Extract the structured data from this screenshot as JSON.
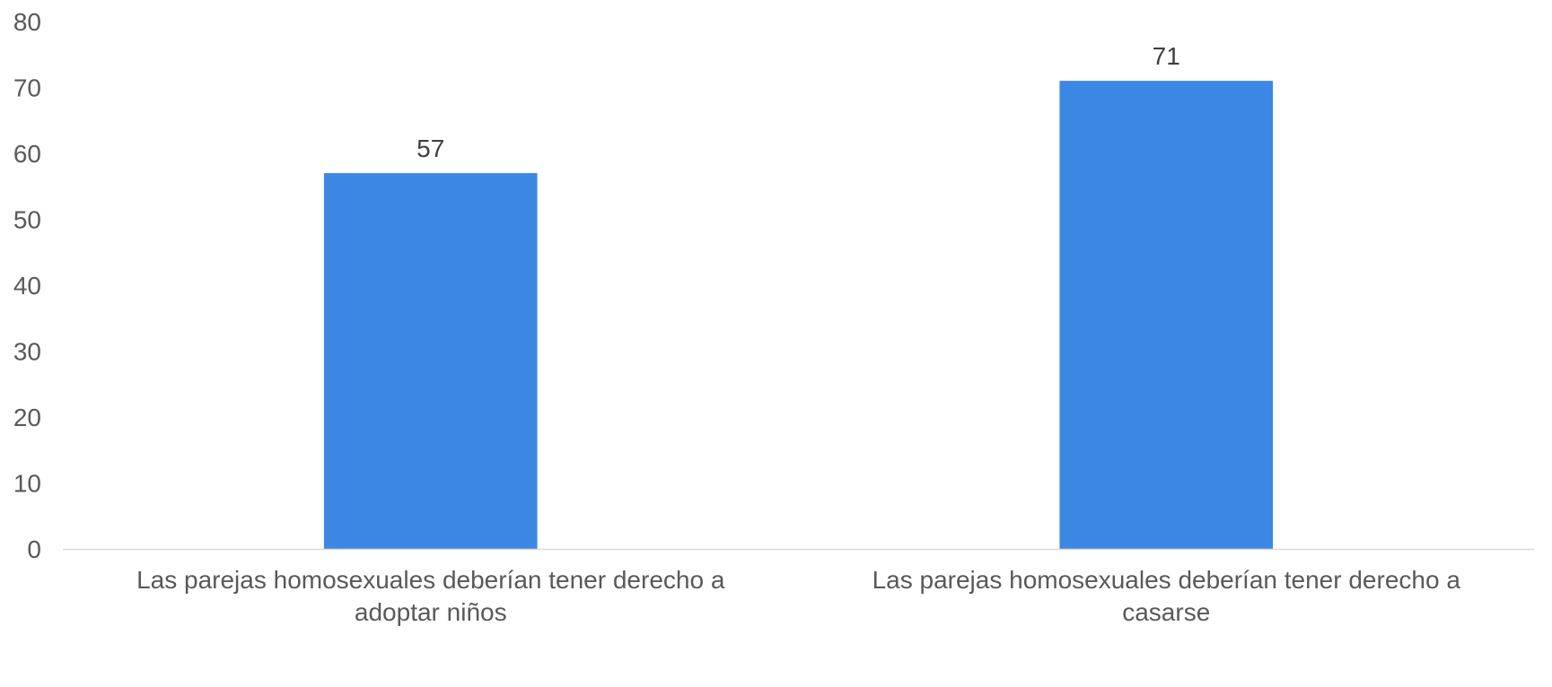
{
  "chart_data": {
    "type": "bar",
    "categories": [
      [
        "Las parejas homosexuales deberían tener derecho a",
        "adoptar niños"
      ],
      [
        "Las parejas homosexuales deberían tener derecho a",
        "casarse"
      ]
    ],
    "values": [
      57,
      71
    ],
    "data_labels": [
      "57",
      "71"
    ],
    "title": "",
    "xlabel": "",
    "ylabel": "",
    "ylim": [
      0,
      80
    ],
    "yticks": [
      "0",
      "10",
      "20",
      "30",
      "40",
      "50",
      "60",
      "70",
      "80"
    ],
    "grid": false,
    "legend": "none",
    "bar_color": "#3d87e4",
    "axis_color": "#d9d9d9"
  }
}
